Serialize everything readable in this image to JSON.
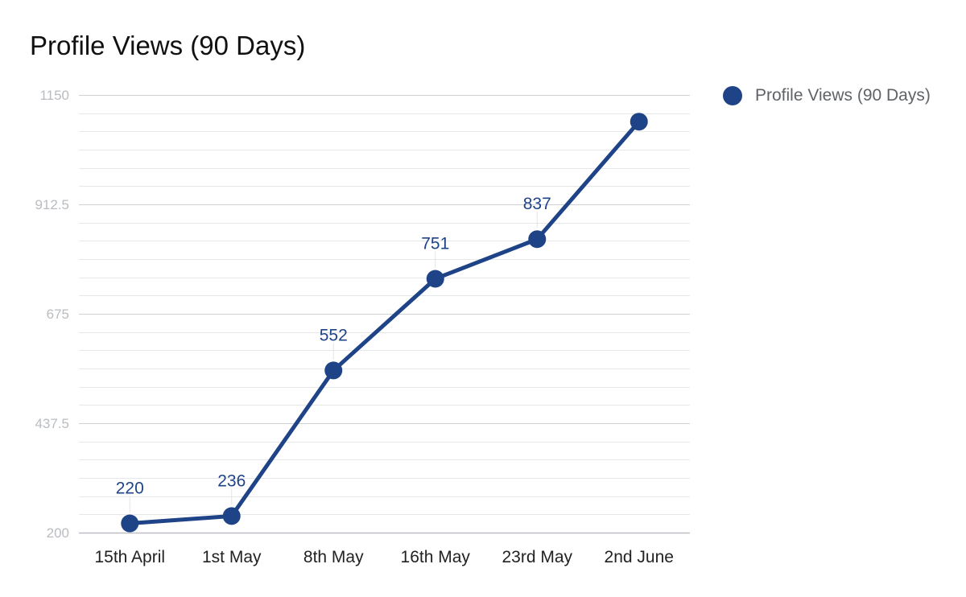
{
  "colors": {
    "series": "#1f4387",
    "grid_major": "#cfd2d6",
    "grid_minor": "#e6e7e9",
    "axis_text": "#b9bcc1"
  },
  "chart_data": {
    "type": "line",
    "title": "Profile Views (90 Days)",
    "xlabel": "",
    "ylabel": "",
    "categories": [
      "15th April",
      "1st May",
      "8th May",
      "16th May",
      "23rd May",
      "2nd June"
    ],
    "series": [
      {
        "name": "Profile Views (90 Days)",
        "values": [
          220,
          236,
          552,
          751,
          837,
          1092
        ],
        "data_labels": [
          "220",
          "236",
          "552",
          "751",
          "837",
          ""
        ]
      }
    ],
    "ylim": [
      200,
      1150
    ],
    "yticks": [
      "200",
      "437.5",
      "675",
      "912.5",
      "1150"
    ],
    "minor_gridlines_per_major": 6,
    "grid": true,
    "legend": "top-right",
    "markers": true
  }
}
